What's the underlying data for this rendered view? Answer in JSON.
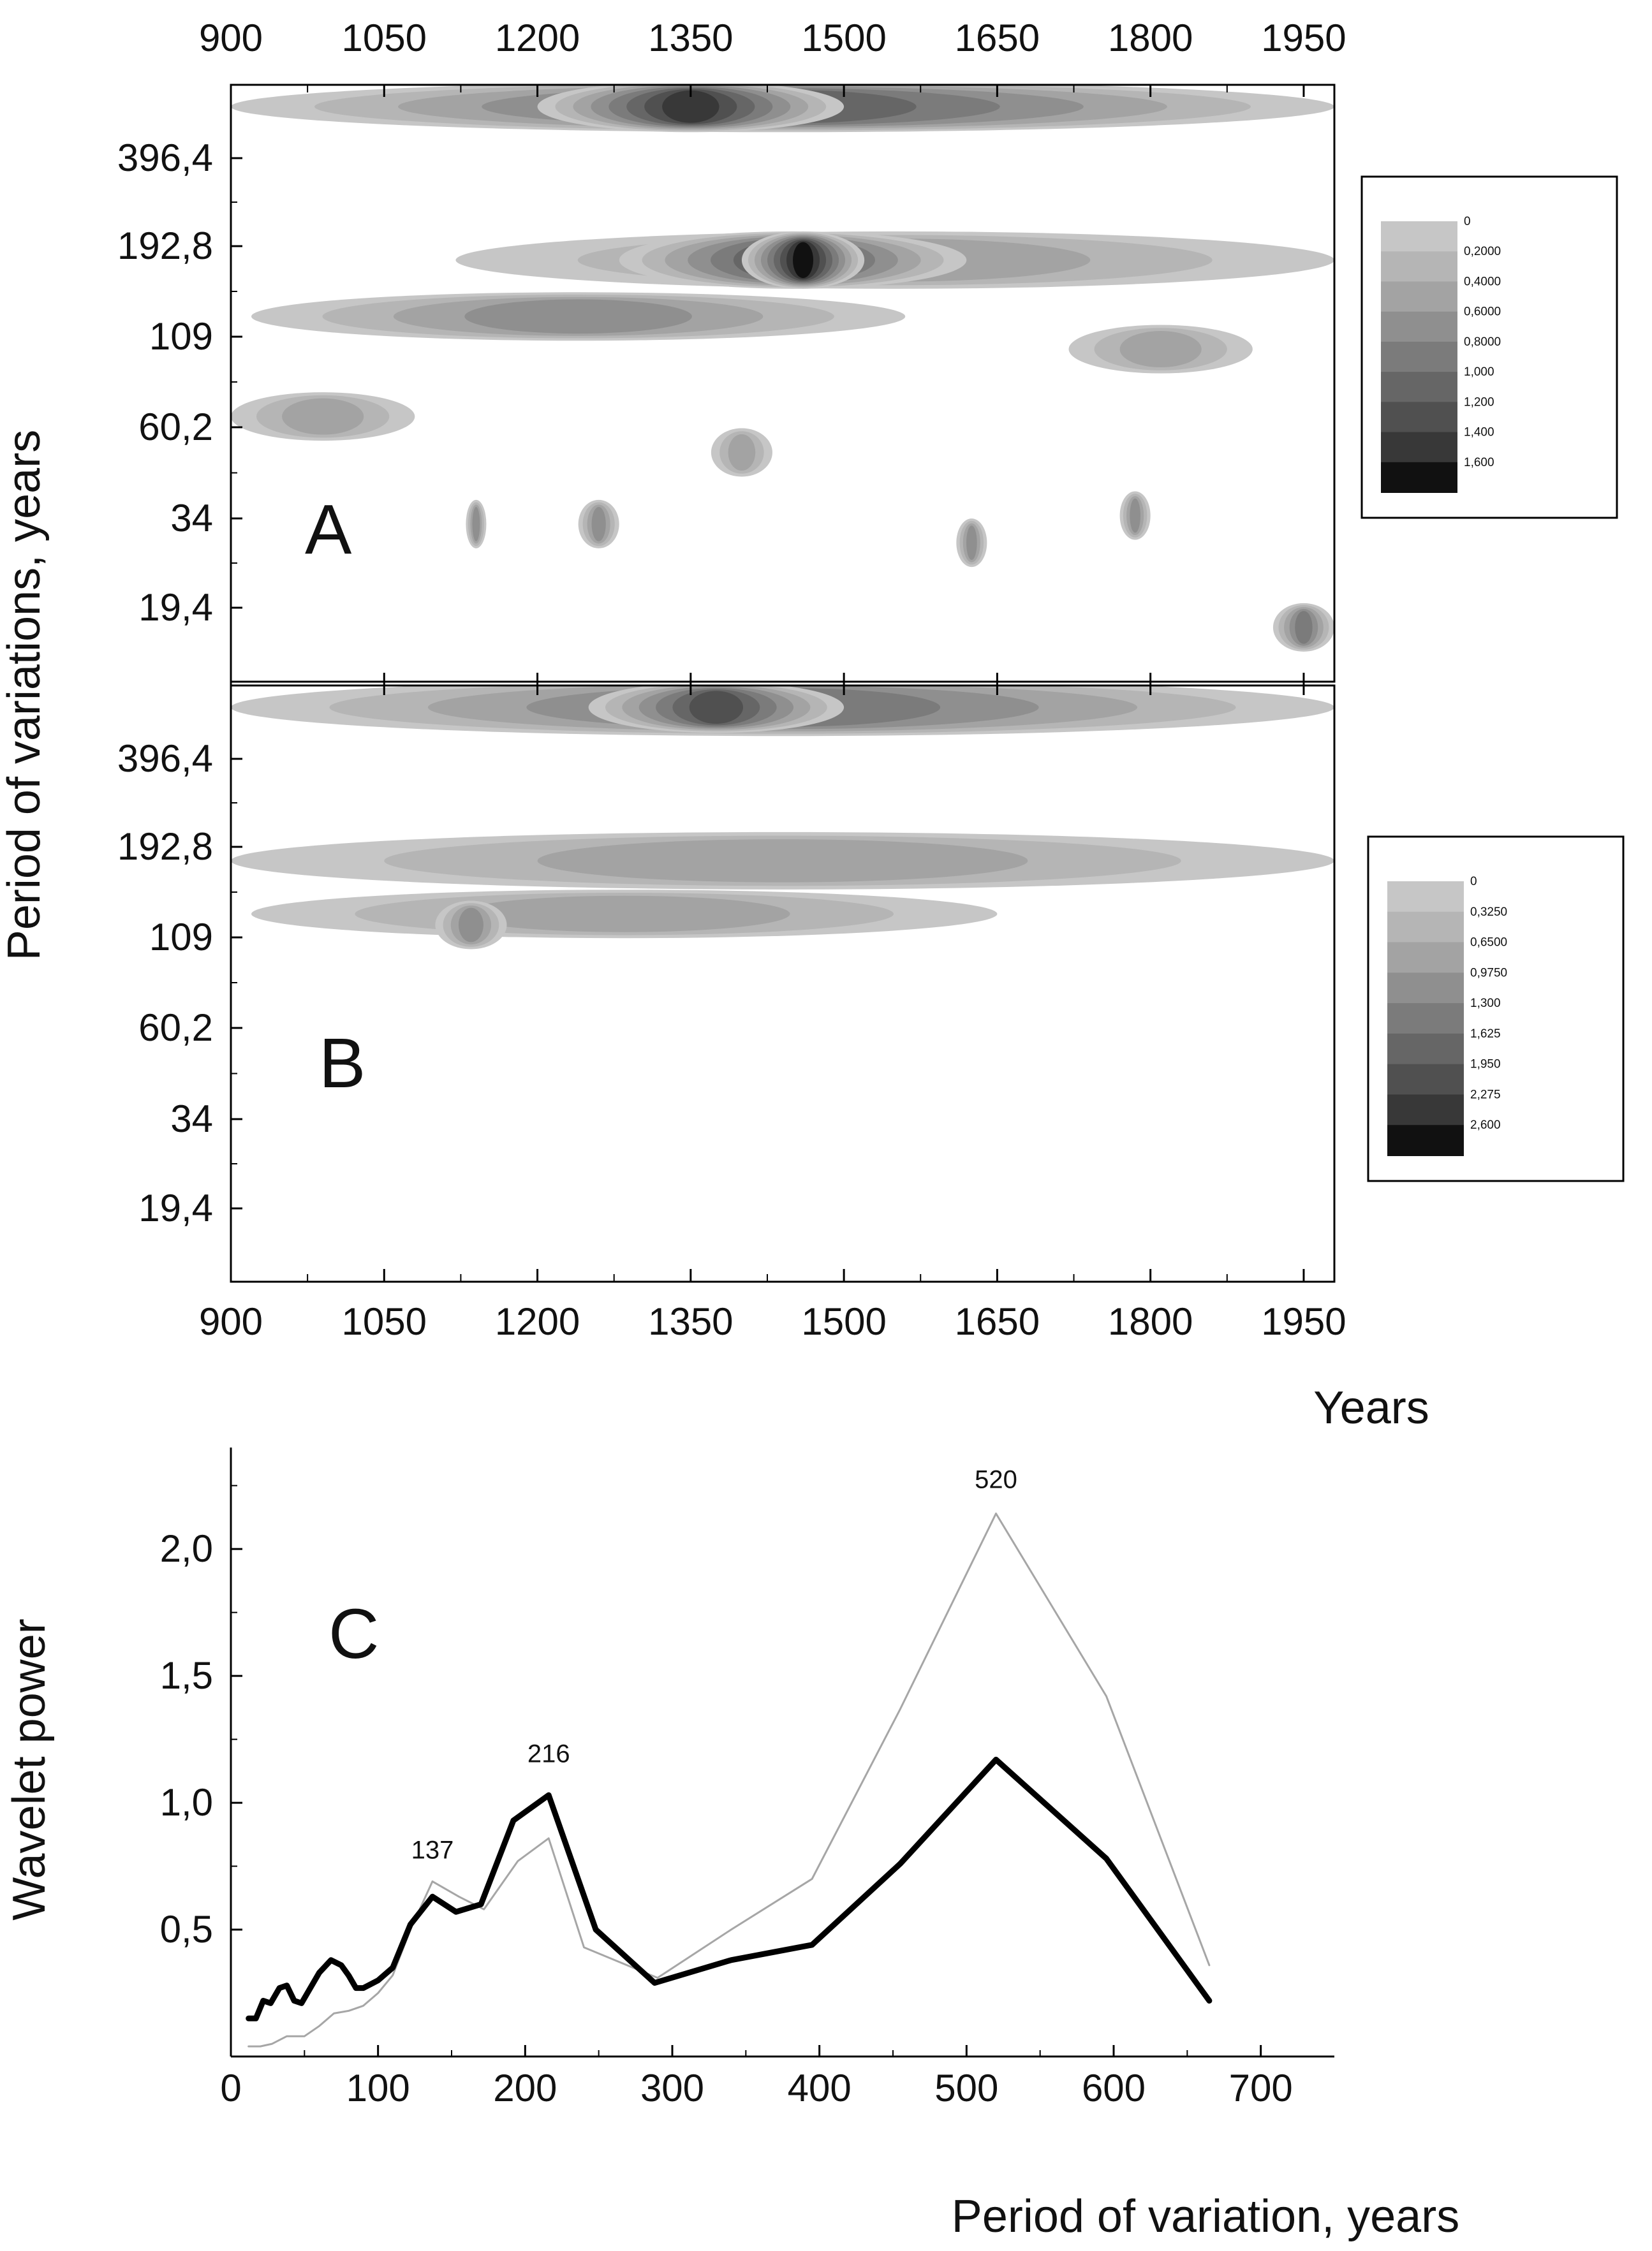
{
  "figure": {
    "x_axis_title_top": "Years",
    "y_axis_title_top": "Period of variations, years",
    "x_axis_title_bottom": "Period of variation, years",
    "y_axis_title_bottom": "Wavelet power"
  },
  "chart_data": [
    {
      "panel": "A",
      "type": "heatmap",
      "title": "A",
      "xlabel": "Years",
      "ylabel": "Period of variations, years",
      "x_ticks": [
        "900",
        "1050",
        "1200",
        "1350",
        "1500",
        "1650",
        "1800",
        "1950"
      ],
      "y_ticks": [
        "396,4",
        "192,8",
        "109",
        "60,2",
        "34",
        "19,4"
      ],
      "x_range": [
        900,
        1980
      ],
      "legend_levels": [
        "0",
        "0,2000",
        "0,4000",
        "0,6000",
        "0,8000",
        "1,000",
        "1,200",
        "1,400",
        "1,600"
      ],
      "level_colors": [
        "#c6c6c6",
        "#b5b5b5",
        "#a3a3a3",
        "#8f8f8f",
        "#7b7b7b",
        "#666666",
        "#505050",
        "#383838",
        "#111111"
      ],
      "regions": [
        {
          "year_start": 900,
          "year_end": 1980,
          "period": 560,
          "level": 5
        },
        {
          "year_start": 1200,
          "year_end": 1500,
          "period": 560,
          "level": 7
        },
        {
          "year_start": 1120,
          "year_end": 1980,
          "period": 200,
          "level": 2
        },
        {
          "year_start": 1280,
          "year_end": 1620,
          "period": 200,
          "level": 6
        },
        {
          "year_start": 1400,
          "year_end": 1520,
          "period": 200,
          "level": 8
        },
        {
          "year_start": 920,
          "year_end": 1560,
          "period": 137,
          "level": 3
        },
        {
          "year_start": 1720,
          "year_end": 1900,
          "period": 110,
          "level": 2
        },
        {
          "year_start": 900,
          "year_end": 1080,
          "period": 70,
          "level": 2
        },
        {
          "year_start": 1370,
          "year_end": 1430,
          "period": 55,
          "level": 2
        },
        {
          "year_start": 1130,
          "year_end": 1150,
          "period": 34,
          "level": 3
        },
        {
          "year_start": 1240,
          "year_end": 1280,
          "period": 34,
          "level": 3
        },
        {
          "year_start": 1610,
          "year_end": 1640,
          "period": 30,
          "level": 3
        },
        {
          "year_start": 1770,
          "year_end": 1800,
          "period": 36,
          "level": 3
        },
        {
          "year_start": 1920,
          "year_end": 1980,
          "period": 17,
          "level": 4
        }
      ]
    },
    {
      "panel": "B",
      "type": "heatmap",
      "title": "B",
      "xlabel": "Years",
      "ylabel": "Period of variations, years",
      "x_ticks": [
        "900",
        "1050",
        "1200",
        "1350",
        "1500",
        "1650",
        "1800",
        "1950"
      ],
      "y_ticks": [
        "396,4",
        "192,8",
        "109",
        "60,2",
        "34",
        "19,4"
      ],
      "x_range": [
        900,
        1980
      ],
      "legend_levels": [
        "0",
        "0,3250",
        "0,6500",
        "0,9750",
        "1,300",
        "1,625",
        "1,950",
        "2,275",
        "2,600"
      ],
      "level_colors": [
        "#c6c6c6",
        "#b5b5b5",
        "#a3a3a3",
        "#8f8f8f",
        "#7b7b7b",
        "#666666",
        "#505050",
        "#383838",
        "#111111"
      ],
      "regions": [
        {
          "year_start": 900,
          "year_end": 1980,
          "period": 560,
          "level": 4
        },
        {
          "year_start": 1250,
          "year_end": 1500,
          "period": 560,
          "level": 6
        },
        {
          "year_start": 900,
          "year_end": 1980,
          "period": 200,
          "level": 2
        },
        {
          "year_start": 920,
          "year_end": 1650,
          "period": 140,
          "level": 2
        },
        {
          "year_start": 1100,
          "year_end": 1170,
          "period": 130,
          "level": 3
        }
      ]
    },
    {
      "panel": "C",
      "type": "line",
      "title": "C",
      "xlabel": "Period of variation, years",
      "ylabel": "Wavelet power",
      "xlim": [
        0,
        750
      ],
      "ylim": [
        0,
        2.4
      ],
      "x_ticks": [
        "0",
        "100",
        "200",
        "300",
        "400",
        "500",
        "600",
        "700"
      ],
      "y_ticks": [
        "0,5",
        "1,0",
        "1,5",
        "2,0"
      ],
      "peak_labels": [
        {
          "text": "137",
          "x": 137,
          "y": 0.78
        },
        {
          "text": "216",
          "x": 216,
          "y": 1.16
        },
        {
          "text": "520",
          "x": 520,
          "y": 2.24
        }
      ],
      "series": [
        {
          "name": "thick",
          "color": "#000000",
          "x": [
            12,
            17,
            22,
            27,
            33,
            38,
            43,
            48,
            60,
            68,
            75,
            80,
            85,
            90,
            100,
            110,
            122,
            137,
            153,
            170,
            192,
            216,
            248,
            288,
            340,
            395,
            455,
            520,
            595,
            665
          ],
          "y": [
            0.15,
            0.15,
            0.22,
            0.21,
            0.27,
            0.28,
            0.22,
            0.21,
            0.33,
            0.38,
            0.36,
            0.32,
            0.27,
            0.27,
            0.3,
            0.35,
            0.52,
            0.63,
            0.57,
            0.6,
            0.93,
            1.03,
            0.5,
            0.29,
            0.38,
            0.44,
            0.76,
            1.17,
            0.78,
            0.22
          ]
        },
        {
          "name": "thin",
          "color": "#a6a6a6",
          "x": [
            12,
            20,
            28,
            38,
            50,
            60,
            70,
            80,
            90,
            100,
            110,
            122,
            137,
            155,
            172,
            195,
            216,
            240,
            290,
            340,
            395,
            455,
            520,
            595,
            665
          ],
          "y": [
            0.04,
            0.04,
            0.05,
            0.08,
            0.08,
            0.12,
            0.17,
            0.18,
            0.2,
            0.25,
            0.32,
            0.5,
            0.69,
            0.63,
            0.58,
            0.77,
            0.86,
            0.43,
            0.31,
            0.5,
            0.7,
            1.37,
            2.14,
            1.42,
            0.36
          ]
        }
      ]
    }
  ]
}
